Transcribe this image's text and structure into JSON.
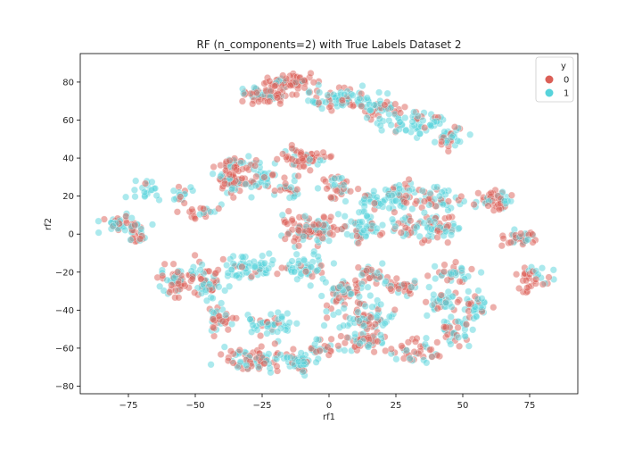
{
  "chart_data": {
    "type": "scatter",
    "title": "RF (n_components=2) with True Labels Dataset 2",
    "xlabel": "rf1",
    "ylabel": "rf2",
    "xlim": [
      -93,
      93
    ],
    "ylim": [
      -84,
      95
    ],
    "x_ticks": [
      -75,
      -50,
      -25,
      0,
      25,
      50,
      75
    ],
    "y_ticks": [
      -80,
      -60,
      -40,
      -20,
      0,
      20,
      40,
      60,
      80
    ],
    "x_tick_labels": [
      "−75",
      "−50",
      "−25",
      "0",
      "25",
      "50",
      "75"
    ],
    "y_tick_labels": [
      "−80",
      "−60",
      "−40",
      "−20",
      "0",
      "20",
      "40",
      "60",
      "80"
    ],
    "grid": false,
    "legend": {
      "title": "y",
      "placement": "top-right",
      "entries": [
        {
          "label": "0",
          "color": "#db5f57"
        },
        {
          "label": "1",
          "color": "#57d3db"
        }
      ]
    },
    "point_opacity": 0.5,
    "clusters": [
      {
        "center": [
          -24,
          73
        ],
        "spread": [
          8,
          4
        ],
        "n": 70,
        "mix": 0.25
      },
      {
        "center": [
          -14,
          80
        ],
        "spread": [
          7,
          4
        ],
        "n": 60,
        "mix": 0.15
      },
      {
        "center": [
          4,
          71
        ],
        "spread": [
          12,
          5
        ],
        "n": 80,
        "mix": 0.65
      },
      {
        "center": [
          20,
          66
        ],
        "spread": [
          7,
          4
        ],
        "n": 40,
        "mix": 0.35
      },
      {
        "center": [
          32,
          58
        ],
        "spread": [
          10,
          5
        ],
        "n": 60,
        "mix": 0.85
      },
      {
        "center": [
          44,
          50
        ],
        "spread": [
          5,
          4
        ],
        "n": 30,
        "mix": 0.5
      },
      {
        "center": [
          -10,
          40
        ],
        "spread": [
          7,
          5
        ],
        "n": 60,
        "mix": 0.2
      },
      {
        "center": [
          -36,
          30
        ],
        "spread": [
          6,
          8
        ],
        "n": 70,
        "mix": 0.35
      },
      {
        "center": [
          -26,
          27
        ],
        "spread": [
          5,
          5
        ],
        "n": 30,
        "mix": 0.75
      },
      {
        "center": [
          -16,
          23
        ],
        "spread": [
          4,
          6
        ],
        "n": 25,
        "mix": 0.55
      },
      {
        "center": [
          3,
          25
        ],
        "spread": [
          5,
          5
        ],
        "n": 35,
        "mix": 0.35
      },
      {
        "center": [
          -55,
          21
        ],
        "spread": [
          4,
          4
        ],
        "n": 15,
        "mix": 0.7
      },
      {
        "center": [
          -48,
          12
        ],
        "spread": [
          6,
          3
        ],
        "n": 20,
        "mix": 0.3
      },
      {
        "center": [
          -68,
          24
        ],
        "spread": [
          4,
          5
        ],
        "n": 20,
        "mix": 0.85
      },
      {
        "center": [
          -79,
          5
        ],
        "spread": [
          5,
          4
        ],
        "n": 35,
        "mix": 0.55
      },
      {
        "center": [
          -72,
          1
        ],
        "spread": [
          4,
          5
        ],
        "n": 30,
        "mix": 0.45
      },
      {
        "center": [
          -6,
          3
        ],
        "spread": [
          10,
          6
        ],
        "n": 110,
        "mix": 0.35
      },
      {
        "center": [
          12,
          4
        ],
        "spread": [
          6,
          6
        ],
        "n": 45,
        "mix": 0.85
      },
      {
        "center": [
          16,
          17
        ],
        "spread": [
          6,
          5
        ],
        "n": 35,
        "mix": 0.8
      },
      {
        "center": [
          28,
          20
        ],
        "spread": [
          7,
          6
        ],
        "n": 50,
        "mix": 0.6
      },
      {
        "center": [
          40,
          18
        ],
        "spread": [
          6,
          6
        ],
        "n": 40,
        "mix": 0.55
      },
      {
        "center": [
          32,
          3
        ],
        "spread": [
          8,
          5
        ],
        "n": 50,
        "mix": 0.6
      },
      {
        "center": [
          44,
          4
        ],
        "spread": [
          5,
          5
        ],
        "n": 30,
        "mix": 0.45
      },
      {
        "center": [
          62,
          17
        ],
        "spread": [
          6,
          5
        ],
        "n": 50,
        "mix": 0.35
      },
      {
        "center": [
          71,
          -2
        ],
        "spread": [
          5,
          4
        ],
        "n": 35,
        "mix": 0.25
      },
      {
        "center": [
          77,
          -23
        ],
        "spread": [
          6,
          5
        ],
        "n": 35,
        "mix": 0.3
      },
      {
        "center": [
          -56,
          -25
        ],
        "spread": [
          7,
          7
        ],
        "n": 70,
        "mix": 0.4
      },
      {
        "center": [
          -44,
          -26
        ],
        "spread": [
          5,
          8
        ],
        "n": 40,
        "mix": 0.6
      },
      {
        "center": [
          -30,
          -17
        ],
        "spread": [
          8,
          5
        ],
        "n": 60,
        "mix": 0.8
      },
      {
        "center": [
          -10,
          -18
        ],
        "spread": [
          8,
          5
        ],
        "n": 50,
        "mix": 0.85
      },
      {
        "center": [
          -40,
          -45
        ],
        "spread": [
          6,
          6
        ],
        "n": 35,
        "mix": 0.45
      },
      {
        "center": [
          -22,
          -47
        ],
        "spread": [
          8,
          5
        ],
        "n": 50,
        "mix": 0.8
      },
      {
        "center": [
          -27,
          -66
        ],
        "spread": [
          10,
          5
        ],
        "n": 80,
        "mix": 0.45
      },
      {
        "center": [
          -11,
          -68
        ],
        "spread": [
          6,
          5
        ],
        "n": 40,
        "mix": 0.75
      },
      {
        "center": [
          -3,
          -60
        ],
        "spread": [
          5,
          4
        ],
        "n": 25,
        "mix": 0.4
      },
      {
        "center": [
          6,
          -30
        ],
        "spread": [
          7,
          6
        ],
        "n": 50,
        "mix": 0.4
      },
      {
        "center": [
          16,
          -22
        ],
        "spread": [
          5,
          4
        ],
        "n": 30,
        "mix": 0.35
      },
      {
        "center": [
          27,
          -27
        ],
        "spread": [
          5,
          4
        ],
        "n": 30,
        "mix": 0.3
      },
      {
        "center": [
          12,
          -44
        ],
        "spread": [
          10,
          6
        ],
        "n": 70,
        "mix": 0.6
      },
      {
        "center": [
          12,
          -57
        ],
        "spread": [
          8,
          5
        ],
        "n": 50,
        "mix": 0.45
      },
      {
        "center": [
          33,
          -62
        ],
        "spread": [
          7,
          6
        ],
        "n": 40,
        "mix": 0.3
      },
      {
        "center": [
          42,
          -37
        ],
        "spread": [
          6,
          6
        ],
        "n": 40,
        "mix": 0.6
      },
      {
        "center": [
          47,
          -50
        ],
        "spread": [
          6,
          6
        ],
        "n": 40,
        "mix": 0.55
      },
      {
        "center": [
          54,
          -38
        ],
        "spread": [
          5,
          5
        ],
        "n": 35,
        "mix": 0.7
      },
      {
        "center": [
          47,
          -21
        ],
        "spread": [
          6,
          4
        ],
        "n": 35,
        "mix": 0.5
      },
      {
        "center": [
          -34,
          37
        ],
        "spread": [
          6,
          3
        ],
        "n": 20,
        "mix": 0.45
      }
    ]
  }
}
